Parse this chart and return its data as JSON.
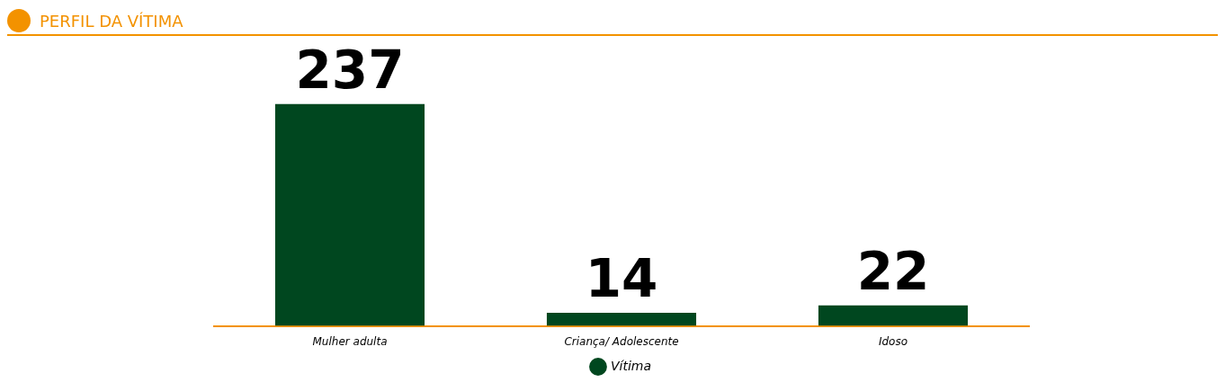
{
  "chart_data": {
    "type": "bar",
    "title": "PERFIL DA VÍTIMA",
    "categories": [
      "Mulher adulta",
      "Criança/ Adolescente",
      "Idoso"
    ],
    "series": [
      {
        "name": "Vítima",
        "color": "#00471f",
        "values": [
          237,
          14,
          22
        ]
      }
    ],
    "data_labels": true,
    "grid": false,
    "legend": "bottom"
  }
}
